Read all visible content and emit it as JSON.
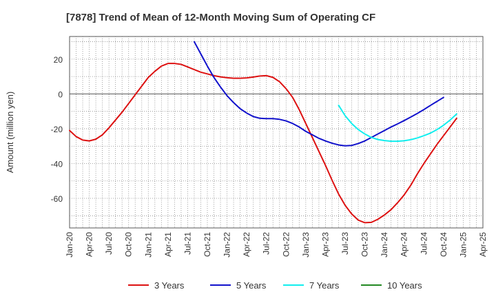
{
  "chart_data": {
    "type": "line",
    "title": "[7878]  Trend of Mean of 12-Month Moving Sum of Operating CF",
    "xlabel": "",
    "ylabel": "Amount (million yen)",
    "x_categories": [
      "Jan-20",
      "Apr-20",
      "Jul-20",
      "Oct-20",
      "Jan-21",
      "Apr-21",
      "Jul-21",
      "Oct-21",
      "Jan-22",
      "Apr-22",
      "Jul-22",
      "Oct-22",
      "Jan-23",
      "Apr-23",
      "Jul-23",
      "Oct-23",
      "Jan-24",
      "Apr-24",
      "Jul-24",
      "Oct-24",
      "Jan-25",
      "Apr-25"
    ],
    "y_ticks": [
      20,
      0,
      -20,
      -40,
      -60
    ],
    "ylim": [
      -77,
      33
    ],
    "grid": true,
    "legend_position": "bottom",
    "series": [
      {
        "name": "3 Years",
        "color": "#dd1111",
        "points": [
          [
            0,
            -21
          ],
          [
            1,
            -24.5
          ],
          [
            2,
            -26.5
          ],
          [
            3,
            -27
          ],
          [
            4,
            -26
          ],
          [
            5,
            -23.5
          ],
          [
            6,
            -19.5
          ],
          [
            7,
            -15
          ],
          [
            8,
            -10.5
          ],
          [
            9,
            -5.5
          ],
          [
            10,
            -0.5
          ],
          [
            11,
            4.5
          ],
          [
            12,
            9.5
          ],
          [
            13,
            13
          ],
          [
            14,
            16
          ],
          [
            15,
            17.5
          ],
          [
            16,
            17.5
          ],
          [
            17,
            17
          ],
          [
            18,
            15.5
          ],
          [
            19,
            14
          ],
          [
            20,
            12.5
          ],
          [
            21,
            11.5
          ],
          [
            22,
            10.5
          ],
          [
            23,
            9.8
          ],
          [
            24,
            9.3
          ],
          [
            25,
            9
          ],
          [
            26,
            9
          ],
          [
            27,
            9.2
          ],
          [
            28,
            9.7
          ],
          [
            29,
            10.3
          ],
          [
            30,
            10.5
          ],
          [
            31,
            9.5
          ],
          [
            32,
            7
          ],
          [
            33,
            3
          ],
          [
            34,
            -2
          ],
          [
            35,
            -9
          ],
          [
            36,
            -17
          ],
          [
            37,
            -25
          ],
          [
            38,
            -33
          ],
          [
            39,
            -41
          ],
          [
            40,
            -49.5
          ],
          [
            41,
            -57.5
          ],
          [
            42,
            -64
          ],
          [
            43,
            -69
          ],
          [
            44,
            -72.5
          ],
          [
            45,
            -74
          ],
          [
            46,
            -73.8
          ],
          [
            47,
            -72
          ],
          [
            48,
            -69.5
          ],
          [
            49,
            -66.5
          ],
          [
            50,
            -62.5
          ],
          [
            51,
            -58
          ],
          [
            52,
            -52.5
          ],
          [
            53,
            -46
          ],
          [
            54,
            -40
          ],
          [
            55,
            -34.5
          ],
          [
            56,
            -29
          ],
          [
            57,
            -24
          ],
          [
            58,
            -19
          ],
          [
            59,
            -14
          ]
        ]
      },
      {
        "name": "5 Years",
        "color": "#1111cc",
        "points": [
          [
            19,
            30
          ],
          [
            20,
            23
          ],
          [
            21,
            16
          ],
          [
            22,
            9.5
          ],
          [
            23,
            4
          ],
          [
            24,
            -1
          ],
          [
            25,
            -5
          ],
          [
            26,
            -8.5
          ],
          [
            27,
            -11
          ],
          [
            28,
            -13
          ],
          [
            29,
            -14
          ],
          [
            30,
            -14.2
          ],
          [
            31,
            -14.2
          ],
          [
            32,
            -14.6
          ],
          [
            33,
            -15.5
          ],
          [
            34,
            -17
          ],
          [
            35,
            -19
          ],
          [
            36,
            -21.5
          ],
          [
            37,
            -23.5
          ],
          [
            38,
            -25.5
          ],
          [
            39,
            -27
          ],
          [
            40,
            -28.3
          ],
          [
            41,
            -29.3
          ],
          [
            42,
            -29.8
          ],
          [
            43,
            -29.6
          ],
          [
            44,
            -28.5
          ],
          [
            45,
            -27
          ],
          [
            46,
            -25
          ],
          [
            47,
            -23
          ],
          [
            48,
            -21
          ],
          [
            49,
            -19
          ],
          [
            50,
            -17.2
          ],
          [
            51,
            -15.3
          ],
          [
            52,
            -13.3
          ],
          [
            53,
            -11.2
          ],
          [
            54,
            -9
          ],
          [
            55,
            -6.6
          ],
          [
            56,
            -4.3
          ],
          [
            57,
            -2
          ]
        ]
      },
      {
        "name": "7 Years",
        "color": "#11eeee",
        "points": [
          [
            41,
            -6.5
          ],
          [
            42,
            -12.5
          ],
          [
            43,
            -17
          ],
          [
            44,
            -20.5
          ],
          [
            45,
            -23
          ],
          [
            46,
            -25
          ],
          [
            47,
            -26.2
          ],
          [
            48,
            -26.8
          ],
          [
            49,
            -27.2
          ],
          [
            50,
            -27.2
          ],
          [
            51,
            -26.9
          ],
          [
            52,
            -26.3
          ],
          [
            53,
            -25.3
          ],
          [
            54,
            -24
          ],
          [
            55,
            -22.5
          ],
          [
            56,
            -20.5
          ],
          [
            57,
            -18
          ],
          [
            58,
            -15
          ],
          [
            59,
            -11.5
          ]
        ]
      },
      {
        "name": "10 Years",
        "color": "#228822",
        "points": []
      }
    ]
  }
}
